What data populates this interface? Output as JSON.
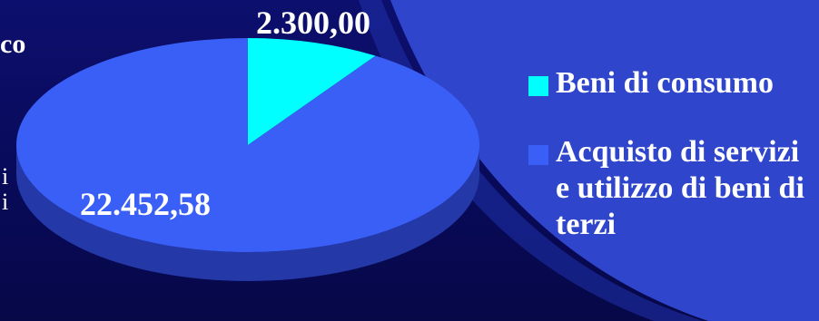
{
  "edge_texts": {
    "top": "co",
    "mid1": "i",
    "mid2": "i"
  },
  "colors": {
    "background": "#0a0c66",
    "arc_background": "#2f46cc",
    "slice_beni": "#00ffff",
    "slice_servizi": "#3a5ff6",
    "slice_servizi_side": "#2438a8"
  },
  "chart_data": {
    "type": "pie",
    "style": "3d",
    "legend_placement": "right",
    "slices": [
      {
        "label": "Beni di consumo",
        "value": 2300.0,
        "display": "2.300,00",
        "color": "#00ffff"
      },
      {
        "label": "Acquisto di servizi e utilizzo di beni di terzi",
        "value": 22452.58,
        "display": "22.452,58",
        "color": "#3a5ff6"
      }
    ]
  },
  "legend": [
    {
      "label": "Beni di consumo",
      "color": "#00ffff"
    },
    {
      "label": "Acquisto di servizi e utilizzo di beni di terzi",
      "color": "#3a5ff6"
    }
  ]
}
